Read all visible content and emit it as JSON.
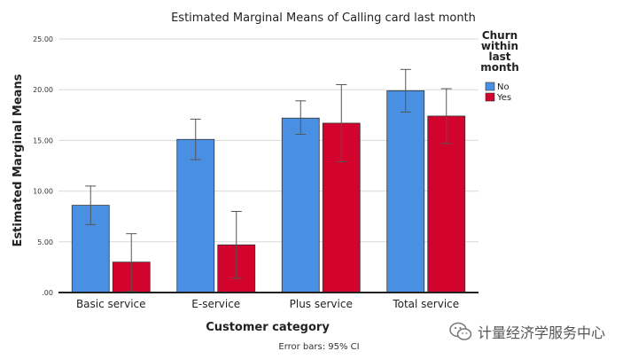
{
  "chart_data": {
    "type": "bar",
    "title": "Estimated Marginal Means of Calling card last month",
    "xlabel": "Customer category",
    "ylabel": "Estimated Marginal Means",
    "categories": [
      "Basic service",
      "E-service",
      "Plus service",
      "Total service"
    ],
    "ylim": [
      0,
      25
    ],
    "yticks": [
      0,
      5,
      10,
      15,
      20,
      25
    ],
    "ytick_labels": [
      ".00",
      "5.00",
      "10.00",
      "15.00",
      "20.00",
      "25.00"
    ],
    "grid": true,
    "legend_title": "Churn within last month",
    "legend_position": "right",
    "series": [
      {
        "name": "No",
        "color": "#4a90e2",
        "values": [
          8.6,
          15.1,
          17.2,
          19.9
        ],
        "ci_low": [
          6.7,
          13.1,
          15.6,
          17.8
        ],
        "ci_high": [
          10.5,
          17.1,
          18.9,
          22.0
        ]
      },
      {
        "name": "Yes",
        "color": "#d2042d",
        "values": [
          3.0,
          4.7,
          16.7,
          17.4
        ],
        "ci_low": [
          0.1,
          1.4,
          12.9,
          14.7
        ],
        "ci_high": [
          5.8,
          8.0,
          20.5,
          20.1
        ]
      }
    ],
    "footnote": "Error bars: 95% CI"
  },
  "watermark": {
    "text": "计量经济学服务中心",
    "icon": "wechat-icon"
  }
}
